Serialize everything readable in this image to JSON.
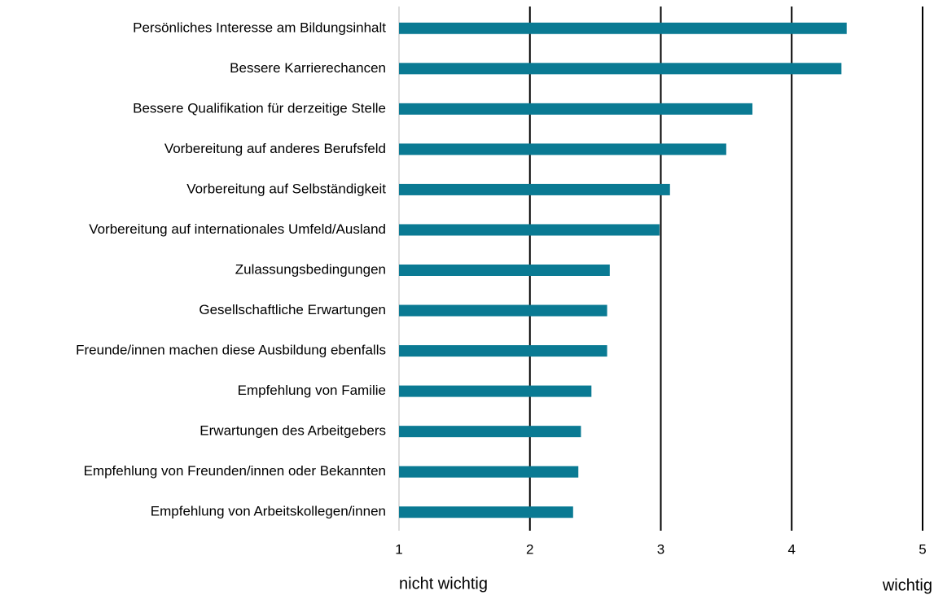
{
  "chart_data": {
    "type": "hbar",
    "categories": [
      "Persönliches Interesse am Bildungsinhalt",
      "Bessere Karrierechancen",
      "Bessere Qualifikation für derzeitige Stelle",
      "Vorbereitung auf anderes Berufsfeld",
      "Vorbereitung auf Selbständigkeit",
      "Vorbereitung auf internationales Umfeld/Ausland",
      "Zulassungsbedingungen",
      "Gesellschaftliche Erwartungen",
      "Freunde/innen machen diese Ausbildung ebenfalls",
      "Empfehlung von Familie",
      "Erwartungen des Arbeitgebers",
      "Empfehlung von Freunden/innen oder Bekannten",
      "Empfehlung von Arbeitskollegen/innen"
    ],
    "values": [
      4.42,
      4.38,
      3.7,
      3.5,
      3.07,
      2.99,
      2.61,
      2.59,
      2.59,
      2.47,
      2.39,
      2.37,
      2.33
    ],
    "color": "#0a7a93",
    "xlim": [
      1,
      5
    ],
    "xticks": [
      1,
      2,
      3,
      4,
      5
    ],
    "grid": true,
    "x_axis_labels": [
      "nicht wichtig",
      "wichtig"
    ]
  }
}
